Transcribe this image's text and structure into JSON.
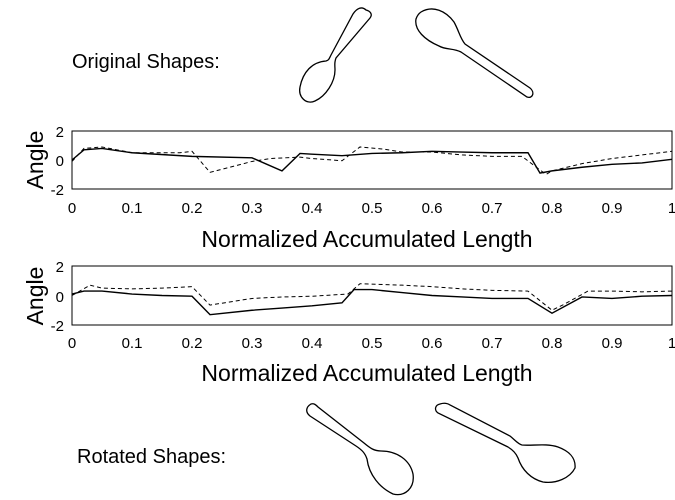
{
  "original_label": "Original Shapes:",
  "rotated_label": "Rotated Shapes:",
  "chart_data": [
    {
      "type": "line",
      "xlabel": "Normalized Accumulated Length",
      "ylabel": "Angle",
      "xlim": [
        0,
        1
      ],
      "ylim": [
        -2,
        2
      ],
      "xticks": [
        "0",
        "0.1",
        "0.2",
        "0.3",
        "0.4",
        "0.5",
        "0.6",
        "0.7",
        "0.8",
        "0.9",
        "1"
      ],
      "yticks": [
        "2",
        "0",
        "-2"
      ],
      "series": [
        {
          "style": "solid",
          "x": [
            0,
            0.02,
            0.05,
            0.1,
            0.2,
            0.3,
            0.35,
            0.38,
            0.4,
            0.45,
            0.5,
            0.55,
            0.6,
            0.65,
            0.7,
            0.76,
            0.78,
            0.8,
            0.85,
            0.9,
            0.95,
            1.0
          ],
          "y": [
            0,
            0.7,
            0.8,
            0.5,
            0.25,
            0.15,
            -0.75,
            0.45,
            0.4,
            0.3,
            0.45,
            0.5,
            0.6,
            0.55,
            0.5,
            0.5,
            -0.9,
            -0.75,
            -0.5,
            -0.3,
            -0.2,
            0.05
          ]
        },
        {
          "style": "dashed",
          "x": [
            0,
            0.02,
            0.05,
            0.1,
            0.18,
            0.2,
            0.23,
            0.3,
            0.33,
            0.38,
            0.4,
            0.45,
            0.48,
            0.52,
            0.55,
            0.6,
            0.65,
            0.7,
            0.75,
            0.79,
            0.8,
            0.85,
            0.9,
            0.95,
            1.0
          ],
          "y": [
            -0.1,
            0.8,
            0.9,
            0.5,
            0.5,
            0.6,
            -0.85,
            -0.1,
            0.1,
            0.2,
            0.1,
            -0.05,
            0.9,
            0.75,
            0.55,
            0.55,
            0.35,
            0.25,
            0.25,
            -1.0,
            -0.75,
            -0.25,
            0.1,
            0.35,
            0.6
          ]
        }
      ]
    },
    {
      "type": "line",
      "xlabel": "Normalized Accumulated Length",
      "ylabel": "Angle",
      "xlim": [
        0,
        1
      ],
      "ylim": [
        -2,
        2
      ],
      "xticks": [
        "0",
        "0.1",
        "0.2",
        "0.3",
        "0.4",
        "0.5",
        "0.6",
        "0.7",
        "0.8",
        "0.9",
        "1"
      ],
      "yticks": [
        "2",
        "0",
        "-2"
      ],
      "series": [
        {
          "style": "solid",
          "x": [
            0,
            0.02,
            0.05,
            0.1,
            0.15,
            0.2,
            0.23,
            0.3,
            0.35,
            0.4,
            0.45,
            0.47,
            0.5,
            0.55,
            0.6,
            0.65,
            0.7,
            0.76,
            0.8,
            0.85,
            0.9,
            0.95,
            1.0
          ],
          "y": [
            0.1,
            0.3,
            0.3,
            0.1,
            0.0,
            -0.05,
            -1.3,
            -1.0,
            -0.85,
            -0.7,
            -0.5,
            0.4,
            0.4,
            0.2,
            0.0,
            -0.1,
            -0.2,
            -0.2,
            -1.2,
            -0.1,
            -0.2,
            -0.05,
            0.0
          ]
        },
        {
          "style": "dashed",
          "x": [
            0,
            0.03,
            0.05,
            0.1,
            0.15,
            0.2,
            0.23,
            0.3,
            0.35,
            0.4,
            0.46,
            0.48,
            0.55,
            0.6,
            0.65,
            0.7,
            0.76,
            0.8,
            0.82,
            0.86,
            0.9,
            0.95,
            1.0
          ],
          "y": [
            0.0,
            0.7,
            0.5,
            0.45,
            0.5,
            0.6,
            -0.65,
            -0.2,
            -0.1,
            -0.05,
            0.1,
            0.8,
            0.7,
            0.6,
            0.45,
            0.35,
            0.3,
            -1.0,
            -0.6,
            0.3,
            0.3,
            0.25,
            0.3
          ]
        }
      ]
    }
  ]
}
